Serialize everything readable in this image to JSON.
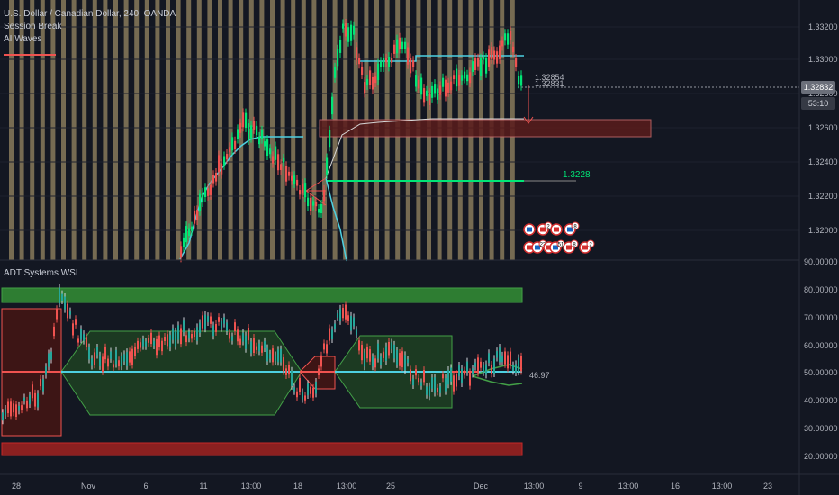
{
  "legend": {
    "symbol": "U.S. Dollar / Canadian Dollar, 240, OANDA",
    "session_break": "Session Break",
    "ai_waves": "AI Waves",
    "subpane_title": "ADT Systems WSI"
  },
  "price_axis": {
    "ticks": [
      "1.33200",
      "1.33000",
      "1.32800",
      "1.32600",
      "1.32400",
      "1.32200",
      "1.32000"
    ],
    "current_price": "1.32832",
    "countdown": "53:10",
    "overlay_label_top": "1.32854",
    "overlay_label_mid": "1.32831",
    "green_line_label": "1.3228"
  },
  "osc_axis": {
    "ticks": [
      "90.00000",
      "80.00000",
      "70.00000",
      "60.00000",
      "50.00000",
      "40.00000",
      "30.00000",
      "20.00000"
    ],
    "value_label": "46.97"
  },
  "time_axis": {
    "labels": [
      "28",
      "Nov",
      "6",
      "11",
      "13:00",
      "18",
      "13:00",
      "25",
      "Dec",
      "13:00",
      "9",
      "13:00",
      "16",
      "13:00",
      "23"
    ]
  },
  "events": {
    "row1": [
      "2",
      "8"
    ],
    "row2": [
      "23",
      "51",
      "8",
      "2"
    ]
  },
  "colors": {
    "background": "#131722",
    "up": "#26a69a",
    "up_bright": "#00e676",
    "down": "#ef5350",
    "session": "#c8b07a",
    "cyan": "#4dd0e1",
    "green_zone": "#2e7d32",
    "red_zone": "#8b2020"
  }
}
